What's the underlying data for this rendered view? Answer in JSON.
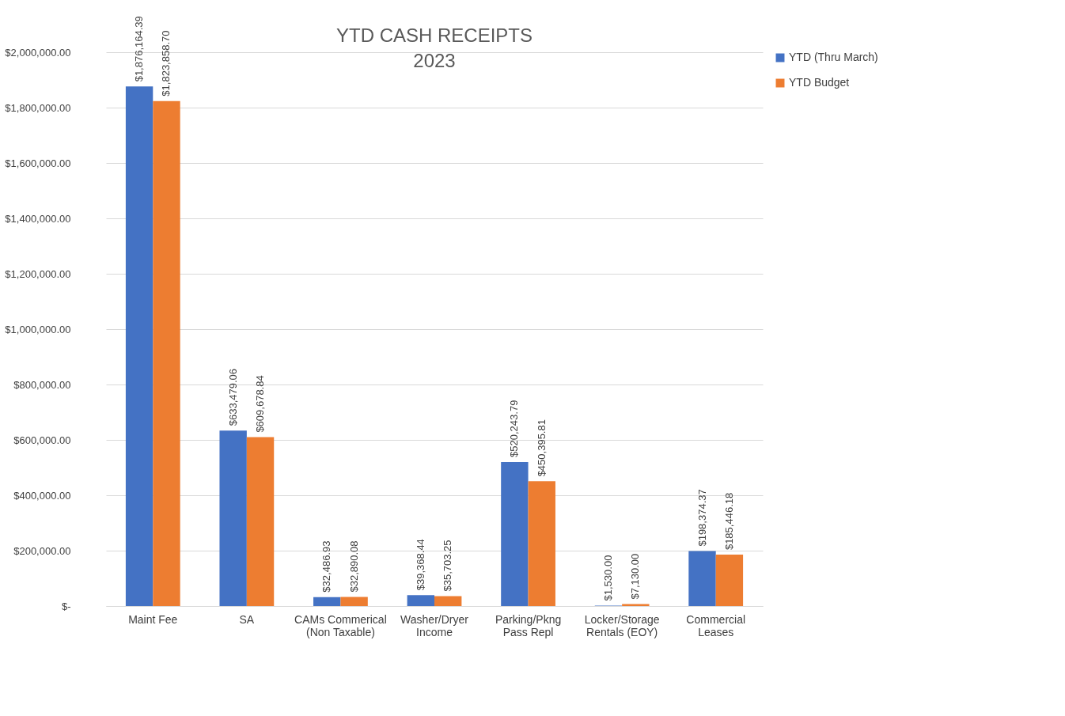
{
  "chart_data": {
    "type": "bar",
    "title": "YTD CASH RECEIPTS",
    "subtitle": "2023",
    "categories": [
      "Maint Fee",
      "SA",
      "CAMs Commerical (Non Taxable)",
      "Washer/Dryer Income",
      "Parking/Pkng Pass Repl",
      "Locker/Storage Rentals (EOY)",
      "Commercial Leases"
    ],
    "series": [
      {
        "name": "YTD (Thru March)",
        "color": "#4472c4",
        "values": [
          1876164.39,
          633479.06,
          32486.93,
          39368.44,
          520243.79,
          1530.0,
          198374.37
        ],
        "value_labels": [
          "$1,876,164.39",
          "$633,479.06",
          "$32,486.93",
          "$39,368.44",
          "$520,243.79",
          "$1,530.00",
          "$198,374.37"
        ]
      },
      {
        "name": "YTD Budget",
        "color": "#ed7d31",
        "values": [
          1823858.7,
          609678.84,
          32890.08,
          35703.25,
          450395.81,
          7130.0,
          185446.18
        ],
        "value_labels": [
          "$1,823,858.70",
          "$609,678.84",
          "$32,890.08",
          "$35,703.25",
          "$450,395.81",
          "$7,130.00",
          "$185,446.18"
        ]
      }
    ],
    "ylim": [
      0,
      2000000
    ],
    "yticks": [
      {
        "value": 0,
        "label": "$-"
      },
      {
        "value": 200000,
        "label": "$200,000.00"
      },
      {
        "value": 400000,
        "label": "$400,000.00"
      },
      {
        "value": 600000,
        "label": "$600,000.00"
      },
      {
        "value": 800000,
        "label": "$800,000.00"
      },
      {
        "value": 1000000,
        "label": "$1,000,000.00"
      },
      {
        "value": 1200000,
        "label": "$1,200,000.00"
      },
      {
        "value": 1400000,
        "label": "$1,400,000.00"
      },
      {
        "value": 1600000,
        "label": "$1,600,000.00"
      },
      {
        "value": 1800000,
        "label": "$1,800,000.00"
      },
      {
        "value": 2000000,
        "label": "$2,000,000.00"
      }
    ],
    "grid": "y",
    "legend": "right"
  }
}
